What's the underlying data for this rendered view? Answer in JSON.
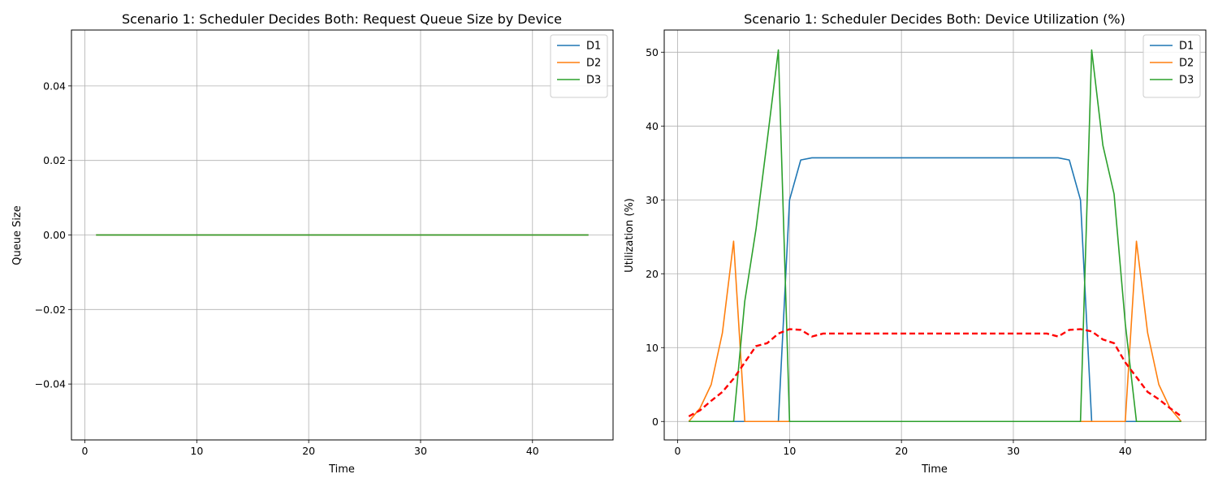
{
  "colors": {
    "D1": "#1f77b4",
    "D2": "#ff7f0e",
    "D3": "#2ca02c",
    "avg": "#ff0000",
    "grid": "#b0b0b0"
  },
  "chart_data": [
    {
      "type": "line",
      "title": "Scenario 1: Scheduler Decides Both: Request Queue Size by Device",
      "xlabel": "Time",
      "ylabel": "Queue Size",
      "xlim": [
        -1.2,
        47.2
      ],
      "ylim": [
        -0.055,
        0.055
      ],
      "xticks": [
        0,
        10,
        20,
        30,
        40
      ],
      "yticks": [
        -0.04,
        -0.02,
        0.0,
        0.02,
        0.04
      ],
      "ytick_labels": [
        "−0.04",
        "−0.02",
        "0.00",
        "0.02",
        "0.04"
      ],
      "grid": true,
      "legend": "top-right",
      "x": [
        1,
        45
      ],
      "series": [
        {
          "name": "D1",
          "values": [
            0,
            0
          ]
        },
        {
          "name": "D2",
          "values": [
            0,
            0
          ]
        },
        {
          "name": "D3",
          "values": [
            0,
            0
          ]
        }
      ]
    },
    {
      "type": "line",
      "title": "Scenario 1: Scheduler Decides Both: Device Utilization (%)",
      "xlabel": "Time",
      "ylabel": "Utilization (%)",
      "xlim": [
        -1.2,
        47.2
      ],
      "ylim": [
        -2.5,
        53
      ],
      "xticks": [
        0,
        10,
        20,
        30,
        40
      ],
      "yticks": [
        0,
        10,
        20,
        30,
        40,
        50
      ],
      "ytick_labels": [
        "0",
        "10",
        "20",
        "30",
        "40",
        "50"
      ],
      "grid": true,
      "legend": "top-right",
      "x": [
        1,
        2,
        3,
        4,
        5,
        6,
        7,
        8,
        9,
        10,
        11,
        12,
        13,
        14,
        15,
        16,
        17,
        18,
        19,
        20,
        21,
        22,
        23,
        24,
        25,
        26,
        27,
        28,
        29,
        30,
        31,
        32,
        33,
        34,
        35,
        36,
        37,
        38,
        39,
        40,
        41,
        42,
        43,
        44,
        45
      ],
      "series": [
        {
          "name": "D1",
          "values": [
            0,
            0,
            0,
            0,
            0,
            0,
            0,
            0,
            0,
            30,
            35.4,
            35.7,
            35.7,
            35.7,
            35.7,
            35.7,
            35.7,
            35.7,
            35.7,
            35.7,
            35.7,
            35.7,
            35.7,
            35.7,
            35.7,
            35.7,
            35.7,
            35.7,
            35.7,
            35.7,
            35.7,
            35.7,
            35.7,
            35.7,
            35.4,
            30,
            0,
            0,
            0,
            0,
            0,
            0,
            0,
            0,
            0
          ]
        },
        {
          "name": "D2",
          "values": [
            0,
            1.8,
            5,
            12,
            24.4,
            0,
            0,
            0,
            0,
            0,
            0,
            0,
            0,
            0,
            0,
            0,
            0,
            0,
            0,
            0,
            0,
            0,
            0,
            0,
            0,
            0,
            0,
            0,
            0,
            0,
            0,
            0,
            0,
            0,
            0,
            0,
            0,
            0,
            0,
            0,
            24.4,
            12,
            5,
            1.8,
            0
          ]
        },
        {
          "name": "D3",
          "values": [
            0,
            0,
            0,
            0,
            0,
            16.3,
            26,
            38,
            50.3,
            0,
            0,
            0,
            0,
            0,
            0,
            0,
            0,
            0,
            0,
            0,
            0,
            0,
            0,
            0,
            0,
            0,
            0,
            0,
            0,
            0,
            0,
            0,
            0,
            0,
            0,
            0,
            50.3,
            37.4,
            30.8,
            13.3,
            0,
            0,
            0,
            0,
            0
          ]
        },
        {
          "values": [
            0.7,
            1.5,
            2.8,
            4,
            5.8,
            8,
            10.2,
            10.6,
            11.9,
            12.5,
            12.4,
            11.5,
            11.9,
            11.9,
            11.9,
            11.9,
            11.9,
            11.9,
            11.9,
            11.9,
            11.9,
            11.9,
            11.9,
            11.9,
            11.9,
            11.9,
            11.9,
            11.9,
            11.9,
            11.9,
            11.9,
            11.9,
            11.9,
            11.5,
            12.4,
            12.5,
            12.2,
            11.1,
            10.6,
            8,
            6,
            4,
            3,
            1.8,
            0.7
          ]
        }
      ]
    }
  ]
}
